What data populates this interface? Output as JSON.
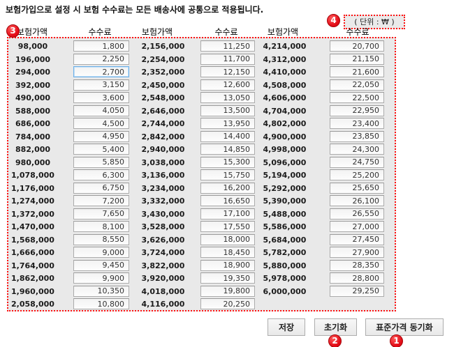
{
  "instruction": "보험가입으로 설정 시 보험 수수료는 모든 배송사에 공통으로 적용됩니다.",
  "unit_label": "( 단위 : ₩ )",
  "headers": [
    "보험가액",
    "수수료",
    "보험가액",
    "수수료",
    "보험가액",
    "수수료"
  ],
  "buttons": {
    "save": "저장",
    "reset": "초기화",
    "sync": "표준가격 동기화"
  },
  "annotations": {
    "badge_1": "1",
    "badge_2": "2",
    "badge_3": "3",
    "badge_4": "4"
  },
  "colors": {
    "annotation_red": "#ff1111",
    "badge_red": "#e20b16",
    "panel_gray": "#e9e9e9",
    "focus_blue": "#6cb0e8"
  },
  "table": {
    "focused": {
      "row": 3,
      "col": "f1"
    },
    "rows": [
      {
        "v1": "98,000",
        "f1": "1,800",
        "v2": "2,156,000",
        "f2": "11,250",
        "v3": "4,214,000",
        "f3": "20,700"
      },
      {
        "v1": "196,000",
        "f1": "2,250",
        "v2": "2,254,000",
        "f2": "11,700",
        "v3": "4,312,000",
        "f3": "21,150"
      },
      {
        "v1": "294,000",
        "f1": "2,700",
        "v2": "2,352,000",
        "f2": "12,150",
        "v3": "4,410,000",
        "f3": "21,600"
      },
      {
        "v1": "392,000",
        "f1": "3,150",
        "v2": "2,450,000",
        "f2": "12,600",
        "v3": "4,508,000",
        "f3": "22,050"
      },
      {
        "v1": "490,000",
        "f1": "3,600",
        "v2": "2,548,000",
        "f2": "13,050",
        "v3": "4,606,000",
        "f3": "22,500"
      },
      {
        "v1": "588,000",
        "f1": "4,050",
        "v2": "2,646,000",
        "f2": "13,500",
        "v3": "4,704,000",
        "f3": "22,950"
      },
      {
        "v1": "686,000",
        "f1": "4,500",
        "v2": "2,744,000",
        "f2": "13,950",
        "v3": "4,802,000",
        "f3": "23,400"
      },
      {
        "v1": "784,000",
        "f1": "4,950",
        "v2": "2,842,000",
        "f2": "14,400",
        "v3": "4,900,000",
        "f3": "23,850"
      },
      {
        "v1": "882,000",
        "f1": "5,400",
        "v2": "2,940,000",
        "f2": "14,850",
        "v3": "4,998,000",
        "f3": "24,300"
      },
      {
        "v1": "980,000",
        "f1": "5,850",
        "v2": "3,038,000",
        "f2": "15,300",
        "v3": "5,096,000",
        "f3": "24,750"
      },
      {
        "v1": "1,078,000",
        "f1": "6,300",
        "v2": "3,136,000",
        "f2": "15,750",
        "v3": "5,194,000",
        "f3": "25,200"
      },
      {
        "v1": "1,176,000",
        "f1": "6,750",
        "v2": "3,234,000",
        "f2": "16,200",
        "v3": "5,292,000",
        "f3": "25,650"
      },
      {
        "v1": "1,274,000",
        "f1": "7,200",
        "v2": "3,332,000",
        "f2": "16,650",
        "v3": "5,390,000",
        "f3": "26,100"
      },
      {
        "v1": "1,372,000",
        "f1": "7,650",
        "v2": "3,430,000",
        "f2": "17,100",
        "v3": "5,488,000",
        "f3": "26,550"
      },
      {
        "v1": "1,470,000",
        "f1": "8,100",
        "v2": "3,528,000",
        "f2": "17,550",
        "v3": "5,586,000",
        "f3": "27,000"
      },
      {
        "v1": "1,568,000",
        "f1": "8,550",
        "v2": "3,626,000",
        "f2": "18,000",
        "v3": "5,684,000",
        "f3": "27,450"
      },
      {
        "v1": "1,666,000",
        "f1": "9,000",
        "v2": "3,724,000",
        "f2": "18,450",
        "v3": "5,782,000",
        "f3": "27,900"
      },
      {
        "v1": "1,764,000",
        "f1": "9,450",
        "v2": "3,822,000",
        "f2": "18,900",
        "v3": "5,880,000",
        "f3": "28,350"
      },
      {
        "v1": "1,862,000",
        "f1": "9,900",
        "v2": "3,920,000",
        "f2": "19,350",
        "v3": "5,978,000",
        "f3": "28,800"
      },
      {
        "v1": "1,960,000",
        "f1": "10,350",
        "v2": "4,018,000",
        "f2": "19,800",
        "v3": "6,000,000",
        "f3": "29,250"
      },
      {
        "v1": "2,058,000",
        "f1": "10,800",
        "v2": "4,116,000",
        "f2": "20,250",
        "v3": "",
        "f3": null
      }
    ]
  }
}
